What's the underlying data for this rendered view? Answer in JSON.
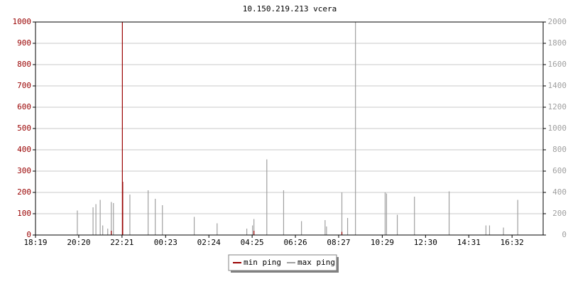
{
  "chart_data": {
    "type": "impulse",
    "title": "10.150.219.213 vcera",
    "xlim": [
      0,
      1420
    ],
    "xticks": [
      {
        "value": 0,
        "label": "18:19"
      },
      {
        "value": 121,
        "label": "20:20"
      },
      {
        "value": 242,
        "label": "22:21"
      },
      {
        "value": 364,
        "label": "00:23"
      },
      {
        "value": 485,
        "label": "02:24"
      },
      {
        "value": 606,
        "label": "04:25"
      },
      {
        "value": 727,
        "label": "06:26"
      },
      {
        "value": 848,
        "label": "08:27"
      },
      {
        "value": 970,
        "label": "10:29"
      },
      {
        "value": 1091,
        "label": "12:30"
      },
      {
        "value": 1212,
        "label": "14:31"
      },
      {
        "value": 1333,
        "label": "16:32"
      }
    ],
    "ylim": [
      0,
      1000
    ],
    "yticks": [
      0,
      100,
      200,
      300,
      400,
      500,
      600,
      700,
      800,
      900,
      1000
    ],
    "y2lim": [
      0,
      2000
    ],
    "y2ticks": [
      0,
      200,
      400,
      600,
      800,
      1000,
      1200,
      1400,
      1600,
      1800,
      2000
    ],
    "grid": true,
    "legend": "bottom",
    "series": [
      {
        "name": "min ping",
        "color": "#990000",
        "x": [
          212,
          243,
          244,
          611,
          857
        ],
        "values": [
          20,
          1000,
          250,
          20,
          15
        ]
      },
      {
        "name": "max ping",
        "color": "#a0a0a0",
        "axis": "y2",
        "x": [
          117,
          161,
          169,
          181,
          188,
          202,
          212,
          218,
          244,
          264,
          315,
          335,
          355,
          444,
          508,
          591,
          607,
          611,
          647,
          694,
          744,
          810,
          814,
          857,
          873,
          895,
          978,
          982,
          1012,
          1060,
          1157,
          1260,
          1270,
          1309,
          1349
        ],
        "values": [
          230,
          260,
          290,
          330,
          90,
          60,
          310,
          300,
          500,
          380,
          420,
          340,
          280,
          170,
          110,
          60,
          90,
          150,
          710,
          420,
          130,
          140,
          80,
          400,
          160,
          2000,
          400,
          390,
          190,
          360,
          410,
          90,
          90,
          70,
          330
        ]
      }
    ]
  }
}
